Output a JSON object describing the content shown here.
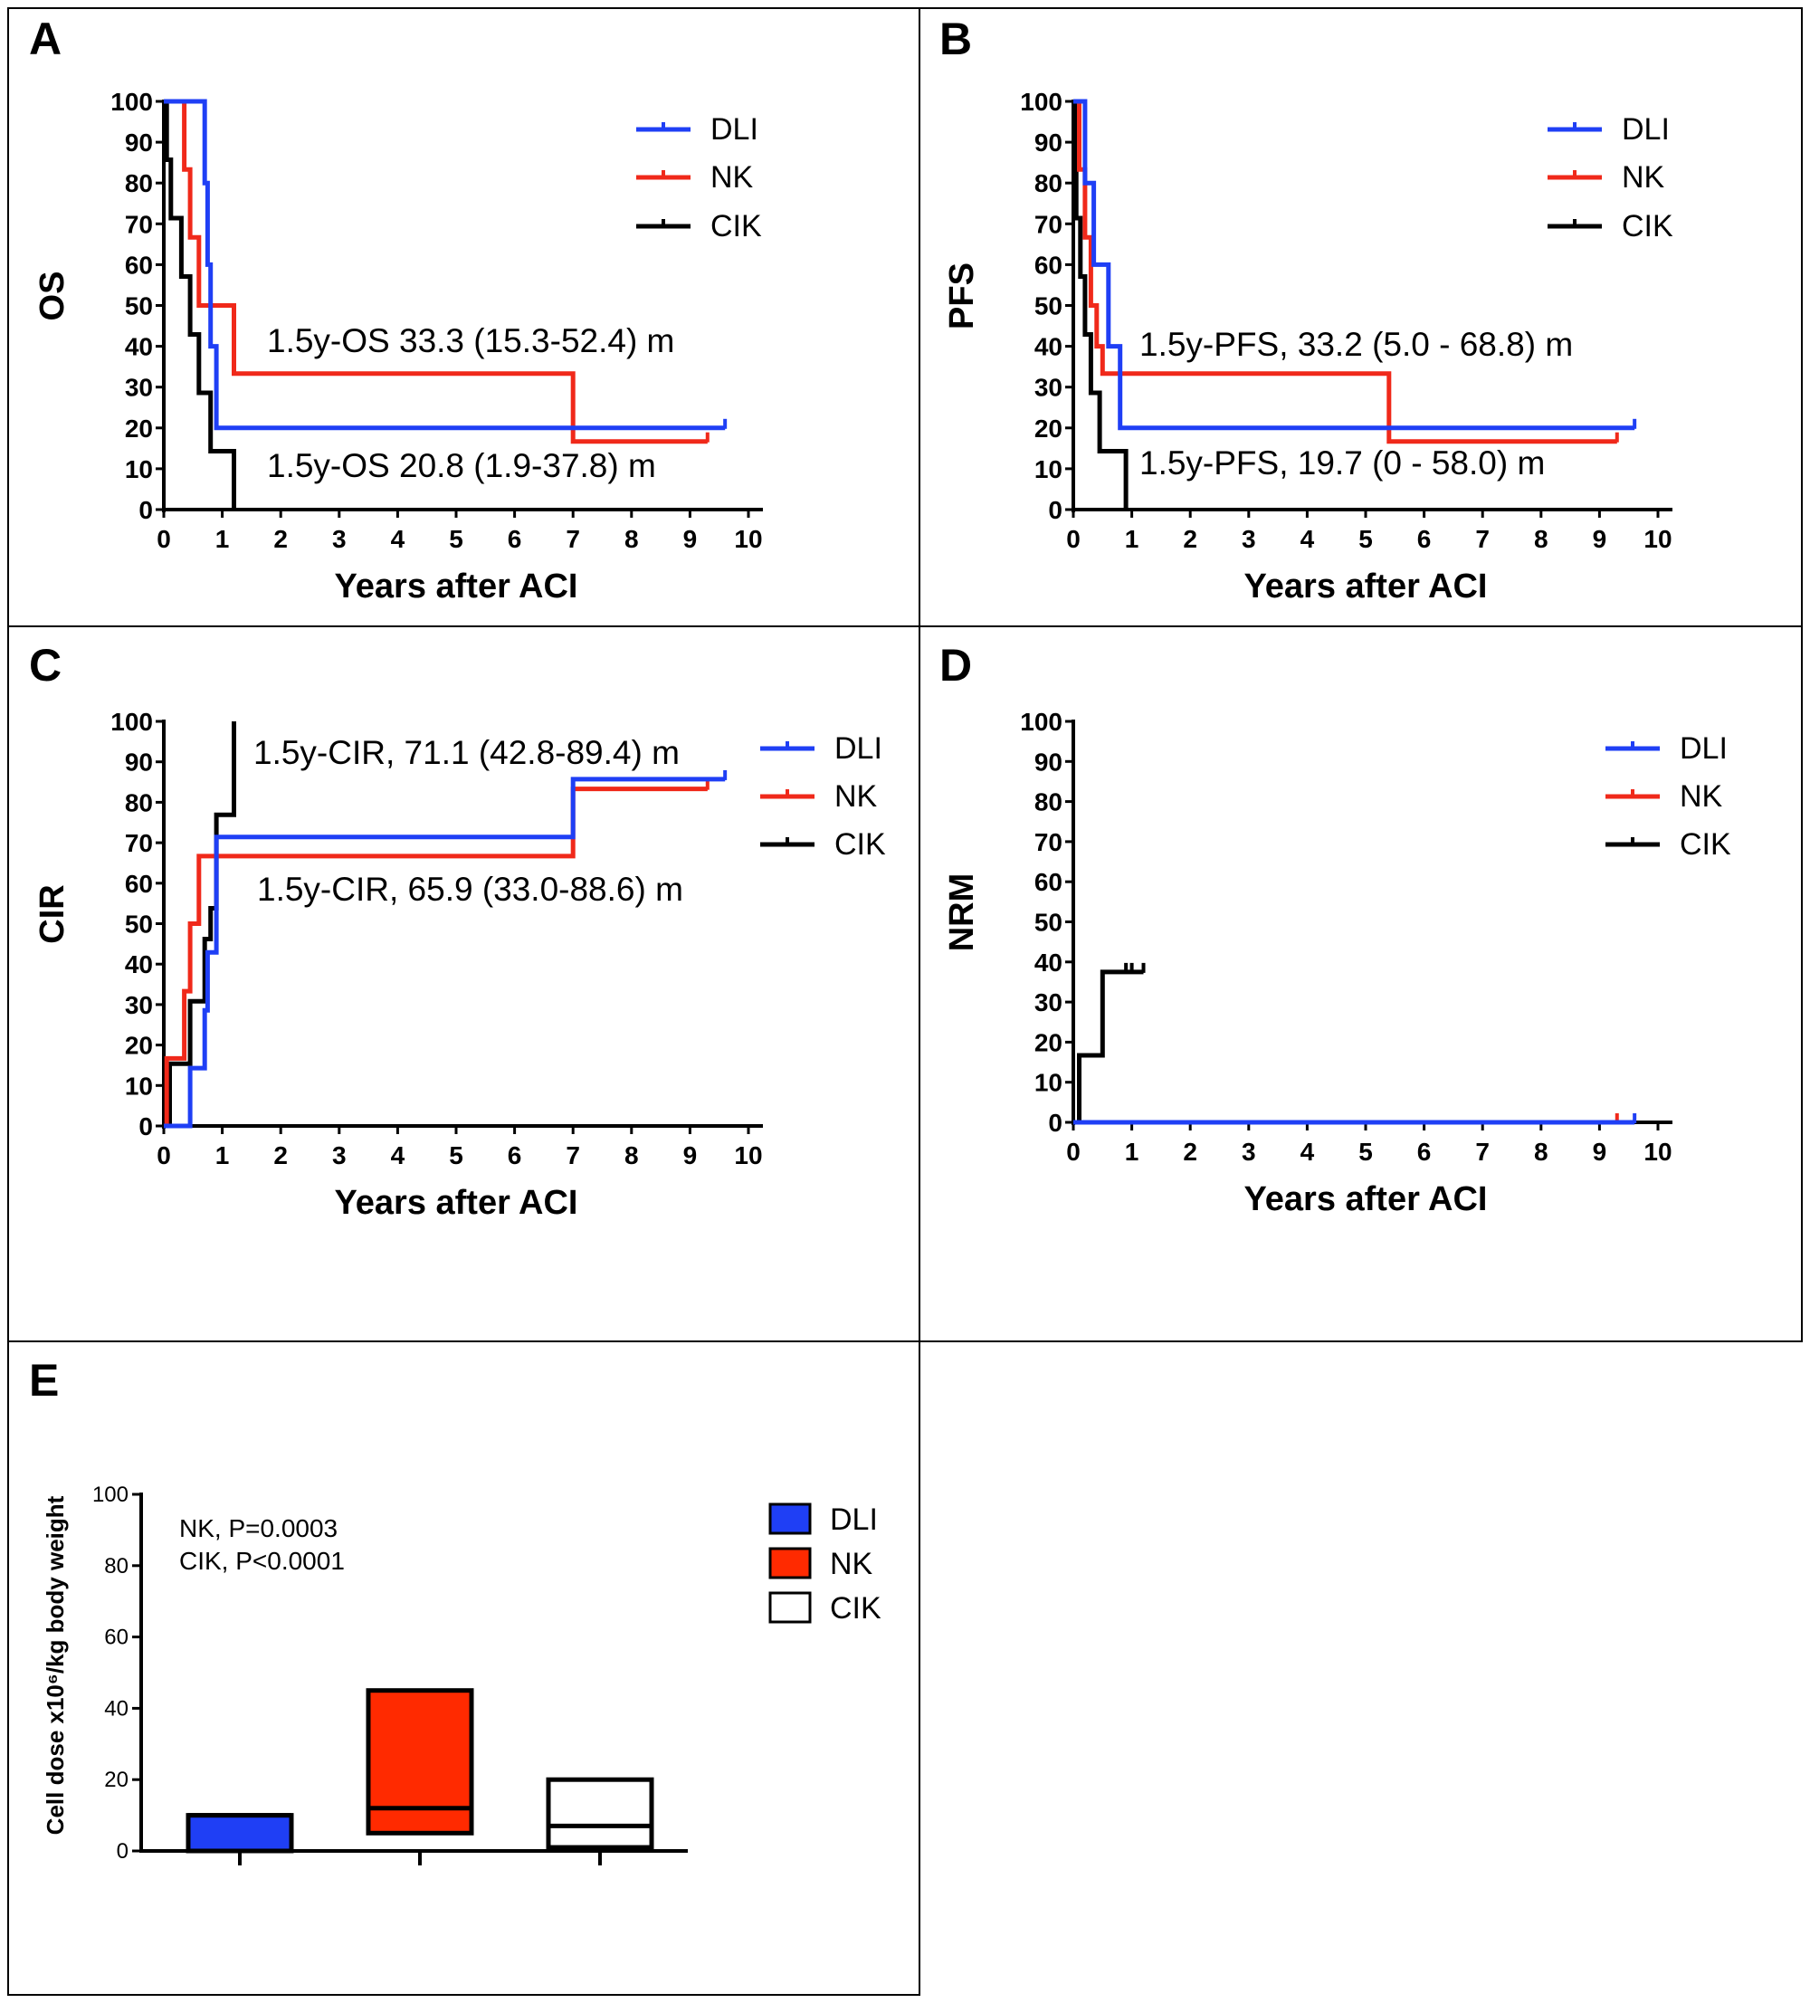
{
  "chart_data": [
    {
      "panel": "A",
      "type": "line",
      "ylabel": "OS",
      "xlabel": "Years after ACI",
      "xlim": [
        0,
        10
      ],
      "ylim": [
        0,
        100
      ],
      "xticks": [
        "0",
        "1",
        "2",
        "3",
        "4",
        "5",
        "6",
        "7",
        "8",
        "9",
        "10"
      ],
      "yticks": [
        "0",
        "10",
        "20",
        "30",
        "40",
        "50",
        "60",
        "70",
        "80",
        "90",
        "100"
      ],
      "legend_placement": "top-right",
      "series": [
        {
          "name": "DLI",
          "color": "#1f3ff5",
          "x": [
            0,
            0.7,
            0.7,
            0.75,
            0.75,
            0.8,
            0.8,
            0.9,
            0.9,
            9.6
          ],
          "y": [
            100,
            100,
            80,
            80,
            60,
            60,
            40,
            40,
            20,
            20
          ],
          "censor_x": [
            9.6
          ]
        },
        {
          "name": "NK",
          "color": "#f0291a",
          "x": [
            0,
            0.35,
            0.35,
            0.45,
            0.45,
            0.6,
            0.6,
            1.2,
            1.2,
            7.0,
            7.0,
            9.3
          ],
          "y": [
            100,
            100,
            83.3,
            83.3,
            66.7,
            66.7,
            50,
            50,
            33.3,
            33.3,
            16.7,
            16.7
          ],
          "censor_x": [
            9.3
          ]
        },
        {
          "name": "CIK",
          "color": "#000000",
          "x": [
            0,
            0.05,
            0.05,
            0.12,
            0.12,
            0.3,
            0.3,
            0.45,
            0.45,
            0.6,
            0.6,
            0.8,
            0.8,
            1.2,
            1.2
          ],
          "y": [
            100,
            100,
            85.7,
            85.7,
            71.4,
            71.4,
            57.1,
            57.1,
            42.9,
            42.9,
            28.6,
            28.6,
            14.3,
            14.3,
            0
          ],
          "censor_x": []
        }
      ],
      "annotations": [
        "1.5y-OS 33.3 (15.3-52.4) m",
        "1.5y-OS 20.8 (1.9-37.8) m"
      ]
    },
    {
      "panel": "B",
      "type": "line",
      "ylabel": "PFS",
      "xlabel": "Years after ACI",
      "xlim": [
        0,
        10
      ],
      "ylim": [
        0,
        100
      ],
      "xticks": [
        "0",
        "1",
        "2",
        "3",
        "4",
        "5",
        "6",
        "7",
        "8",
        "9",
        "10"
      ],
      "yticks": [
        "0",
        "10",
        "20",
        "30",
        "40",
        "50",
        "60",
        "70",
        "80",
        "90",
        "100"
      ],
      "legend_placement": "top-right",
      "series": [
        {
          "name": "DLI",
          "color": "#1f3ff5",
          "x": [
            0,
            0.2,
            0.2,
            0.35,
            0.35,
            0.6,
            0.6,
            0.8,
            0.8,
            9.6
          ],
          "y": [
            100,
            100,
            80,
            80,
            60,
            60,
            40,
            40,
            20,
            20
          ],
          "censor_x": [
            9.6
          ]
        },
        {
          "name": "NK",
          "color": "#f0291a",
          "x": [
            0,
            0.1,
            0.1,
            0.2,
            0.2,
            0.3,
            0.3,
            0.4,
            0.4,
            0.5,
            0.5,
            5.4,
            5.4,
            9.3
          ],
          "y": [
            100,
            100,
            83.3,
            83.3,
            66.7,
            66.7,
            50,
            50,
            40,
            40,
            33.3,
            33.3,
            16.7,
            16.7
          ],
          "censor_x": [
            9.3
          ]
        },
        {
          "name": "CIK",
          "color": "#000000",
          "x": [
            0,
            0.05,
            0.05,
            0.12,
            0.12,
            0.2,
            0.2,
            0.3,
            0.3,
            0.45,
            0.45,
            0.9,
            0.9
          ],
          "y": [
            100,
            100,
            71.4,
            71.4,
            57.1,
            57.1,
            42.9,
            42.9,
            28.6,
            28.6,
            14.3,
            14.3,
            0
          ],
          "censor_x": []
        }
      ],
      "annotations": [
        "1.5y-PFS, 33.2 (5.0 - 68.8) m",
        "1.5y-PFS, 19.7 (0 - 58.0) m"
      ]
    },
    {
      "panel": "C",
      "type": "line",
      "ylabel": "CIR",
      "xlabel": "Years after ACI",
      "xlim": [
        0,
        10
      ],
      "ylim": [
        0,
        100
      ],
      "xticks": [
        "0",
        "1",
        "2",
        "3",
        "4",
        "5",
        "6",
        "7",
        "8",
        "9",
        "10"
      ],
      "yticks": [
        "0",
        "10",
        "20",
        "30",
        "40",
        "50",
        "60",
        "70",
        "80",
        "90",
        "100"
      ],
      "legend_placement": "top-right",
      "series": [
        {
          "name": "DLI",
          "color": "#1f3ff5",
          "x": [
            0,
            0.45,
            0.45,
            0.7,
            0.7,
            0.75,
            0.75,
            0.9,
            0.9,
            7.0,
            7.0,
            9.6
          ],
          "y": [
            0,
            0,
            14.3,
            14.3,
            28.6,
            28.6,
            42.9,
            42.9,
            71.4,
            71.4,
            85.7,
            85.7
          ],
          "censor_x": [
            9.6
          ]
        },
        {
          "name": "NK",
          "color": "#f0291a",
          "x": [
            0,
            0.05,
            0.05,
            0.35,
            0.35,
            0.45,
            0.45,
            0.6,
            0.6,
            7.0,
            7.0,
            9.3
          ],
          "y": [
            0,
            0,
            16.7,
            16.7,
            33.3,
            33.3,
            50,
            50,
            66.7,
            66.7,
            83.3,
            83.3
          ],
          "censor_x": [
            9.3
          ]
        },
        {
          "name": "CIK",
          "color": "#000000",
          "x": [
            0,
            0.1,
            0.1,
            0.45,
            0.45,
            0.7,
            0.7,
            0.8,
            0.8,
            0.9,
            0.9,
            1.2,
            1.2
          ],
          "y": [
            0,
            0,
            15.4,
            15.4,
            30.8,
            30.8,
            46.2,
            46.2,
            53.8,
            53.8,
            76.9,
            76.9,
            100
          ],
          "censor_x": []
        }
      ],
      "annotations": [
        "1.5y-CIR, 71.1 (42.8-89.4) m",
        "1.5y-CIR, 65.9 (33.0-88.6) m"
      ]
    },
    {
      "panel": "D",
      "type": "line",
      "ylabel": "NRM",
      "xlabel": "Years after ACI",
      "xlim": [
        0,
        10
      ],
      "ylim": [
        0,
        100
      ],
      "xticks": [
        "0",
        "1",
        "2",
        "3",
        "4",
        "5",
        "6",
        "7",
        "8",
        "9",
        "10"
      ],
      "yticks": [
        "0",
        "10",
        "20",
        "30",
        "40",
        "50",
        "60",
        "70",
        "80",
        "90",
        "100"
      ],
      "legend_placement": "top-right",
      "series": [
        {
          "name": "DLI",
          "color": "#1f3ff5",
          "x": [
            0,
            9.6
          ],
          "y": [
            0,
            0
          ],
          "censor_x": [
            9.6
          ]
        },
        {
          "name": "NK",
          "color": "#f0291a",
          "x": [
            0,
            9.3
          ],
          "y": [
            0,
            0
          ],
          "censor_x": [
            9.3
          ]
        },
        {
          "name": "CIK",
          "color": "#000000",
          "x": [
            0,
            0.1,
            0.1,
            0.5,
            0.5,
            1.2
          ],
          "y": [
            0,
            0,
            16.7,
            16.7,
            37.5,
            37.5
          ],
          "censor_x": [
            0.9,
            1.0,
            1.2
          ]
        }
      ],
      "annotations": []
    },
    {
      "panel": "E",
      "type": "bar",
      "ylabel": "Cell dose x10⁶/kg body weight",
      "ylim": [
        0,
        100
      ],
      "yticks": [
        "0",
        "20",
        "40",
        "60",
        "80",
        "100"
      ],
      "legend_placement": "top-right",
      "categories": [
        "DLI",
        "NK",
        "CIK"
      ],
      "boxes": [
        {
          "name": "DLI",
          "color": "#1f3ff5",
          "low": 0,
          "high": 10,
          "median": 10
        },
        {
          "name": "NK",
          "color": "#ff2a00",
          "low": 5,
          "high": 45,
          "median": 12
        },
        {
          "name": "CIK",
          "color": "#ffffff",
          "low": 1,
          "high": 20,
          "median": 7
        }
      ],
      "annotations": [
        "NK, P=0.0003",
        "CIK, P<0.0001"
      ]
    }
  ]
}
